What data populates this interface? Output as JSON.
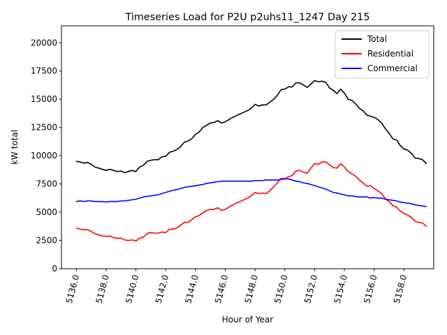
{
  "chart_data": {
    "type": "line",
    "title": "Timeseries Load for P2U p2uhs11_1247  Day 215",
    "xlabel": "Hour of Year",
    "ylabel": "kW total",
    "xlim": [
      5135.0,
      5160.0
    ],
    "ylim": [
      0,
      21500
    ],
    "x_start": 5136.0,
    "x_step": 0.25,
    "x_ticks": [
      5136,
      5138,
      5140,
      5142,
      5144,
      5146,
      5148,
      5150,
      5152,
      5154,
      5156,
      5158
    ],
    "x_tick_labels": [
      "5136.0",
      "5138.0",
      "5140.0",
      "5142.0",
      "5144.0",
      "5146.0",
      "5148.0",
      "5150.0",
      "5152.0",
      "5154.0",
      "5156.0",
      "5158.0"
    ],
    "y_ticks": [
      0,
      2500,
      5000,
      7500,
      10000,
      12500,
      15000,
      17500,
      20000
    ],
    "y_tick_labels": [
      "0",
      "2500",
      "5000",
      "7500",
      "10000",
      "12500",
      "15000",
      "17500",
      "20000"
    ],
    "legend_position": "top-right",
    "series": [
      {
        "name": "Total",
        "color": "#000000",
        "values": [
          9500,
          9450,
          9350,
          9400,
          9250,
          9000,
          8900,
          8800,
          8700,
          8800,
          8700,
          8600,
          8650,
          8500,
          8600,
          8700,
          8600,
          9000,
          9150,
          9500,
          9600,
          9650,
          9650,
          9900,
          9950,
          10300,
          10400,
          10550,
          10800,
          11200,
          11300,
          11500,
          11900,
          12100,
          12500,
          12700,
          12900,
          12950,
          13100,
          12900,
          13000,
          13200,
          13400,
          13550,
          13700,
          13850,
          14000,
          14200,
          14550,
          14400,
          14500,
          14500,
          14750,
          15000,
          15350,
          15850,
          15900,
          16100,
          16100,
          16450,
          16450,
          16250,
          16050,
          16350,
          16650,
          16550,
          16600,
          16500,
          16000,
          15800,
          15500,
          15900,
          15550,
          15000,
          14900,
          14600,
          14200,
          14000,
          13600,
          13500,
          13400,
          13200,
          12900,
          12400,
          12000,
          11500,
          11400,
          10900,
          10600,
          10500,
          10200,
          9800,
          9750,
          9650,
          9300
        ]
      },
      {
        "name": "Residential",
        "color": "#ff0000",
        "values": [
          3600,
          3500,
          3450,
          3450,
          3300,
          3100,
          3000,
          2900,
          2850,
          2900,
          2750,
          2700,
          2700,
          2550,
          2500,
          2550,
          2450,
          2700,
          2800,
          3100,
          3200,
          3150,
          3150,
          3250,
          3200,
          3500,
          3500,
          3600,
          3850,
          4100,
          4100,
          4350,
          4600,
          4700,
          4950,
          5150,
          5250,
          5250,
          5400,
          5150,
          5250,
          5450,
          5650,
          5800,
          5950,
          6100,
          6250,
          6450,
          6750,
          6650,
          6700,
          6650,
          6900,
          7250,
          7600,
          8000,
          7950,
          8150,
          8250,
          8650,
          8700,
          8550,
          8450,
          8900,
          9300,
          9250,
          9450,
          9450,
          9200,
          8950,
          8900,
          9300,
          9000,
          8600,
          8400,
          8200,
          7850,
          7600,
          7300,
          7350,
          7100,
          6900,
          6650,
          6200,
          5950,
          5600,
          5450,
          5100,
          4900,
          4750,
          4550,
          4200,
          4100,
          4050,
          3750
        ]
      },
      {
        "name": "Commercial",
        "color": "#0000ff",
        "values": [
          5950,
          6000,
          5950,
          6000,
          6000,
          5950,
          5950,
          5950,
          5900,
          5950,
          5950,
          5950,
          6000,
          6000,
          6050,
          6100,
          6150,
          6250,
          6350,
          6400,
          6450,
          6500,
          6550,
          6650,
          6750,
          6850,
          6950,
          7000,
          7100,
          7200,
          7250,
          7300,
          7350,
          7400,
          7450,
          7550,
          7600,
          7650,
          7700,
          7750,
          7750,
          7750,
          7750,
          7750,
          7750,
          7750,
          7750,
          7750,
          7800,
          7800,
          7800,
          7850,
          7850,
          7850,
          7850,
          7900,
          7950,
          7950,
          7850,
          7750,
          7700,
          7600,
          7550,
          7450,
          7350,
          7250,
          7150,
          7050,
          6900,
          6750,
          6700,
          6600,
          6550,
          6450,
          6450,
          6400,
          6350,
          6350,
          6350,
          6250,
          6300,
          6250,
          6250,
          6150,
          6100,
          6050,
          6000,
          5900,
          5850,
          5800,
          5750,
          5650,
          5600,
          5550,
          5500
        ]
      }
    ]
  }
}
